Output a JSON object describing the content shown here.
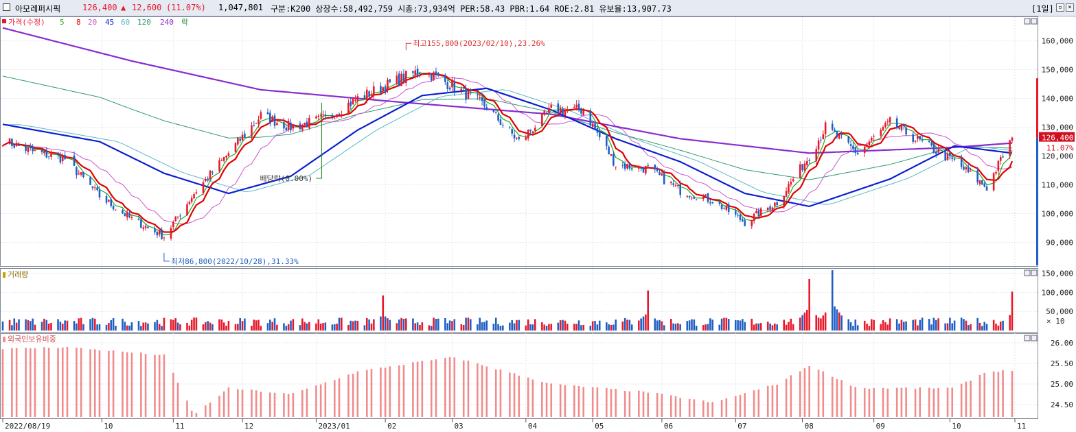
{
  "header": {
    "name": "아모레퍼시픽",
    "price": "126,400",
    "change_arrow": "▲",
    "change": "12,600",
    "change_pct": "(11.07%)",
    "volume": "1,047,801",
    "info": "구분:K200 상장수:58,492,759 시총:73,934억 PER:58.43 PBR:1.64 ROE:2.81 유보율:13,907.73",
    "period": "[1일]",
    "min_icon": "minimize-icon",
    "close_icon": "close-icon"
  },
  "colors": {
    "up": "#e8182b",
    "down": "#1f5fc4",
    "ma5": "#22aa22",
    "ma8": "#e00000",
    "ma20": "#cc55cc",
    "ma45": "#0a1fd0",
    "ma60": "#5bb8c8",
    "ma120": "#2f9a6e",
    "ma240": "#8a2bd0",
    "foreign": "#f08c8c"
  },
  "chart_data": [
    {
      "type": "candlestick",
      "title": "",
      "legend": [
        "가격(수정)",
        "5",
        "8",
        "20",
        "45",
        "60",
        "120",
        "240",
        "락"
      ],
      "x_ticks": [
        "2022/08/19",
        "10",
        "11",
        "12",
        "2023/01",
        "02",
        "03",
        "04",
        "05",
        "06",
        "07",
        "08",
        "09",
        "10",
        "11"
      ],
      "y_ticks": [
        "160,000",
        "150,000",
        "140,000",
        "130,000",
        "120,000",
        "110,000",
        "100,000",
        "90,000"
      ],
      "ylim": [
        82000,
        168000
      ],
      "last_price_label": "126,400",
      "last_change_label": "11.07%",
      "annotations": {
        "high": "최고155,800(2023/02/10),23.26%",
        "low": "최저86,800(2022/10/28),31.33%",
        "dividend": "배당락(0.00%)"
      },
      "series": [
        {
          "name": "가격(수정)",
          "values": [
            {
              "x": "2022-08-19",
              "y": 125500
            },
            {
              "x": "2022-09-01",
              "y": 121500
            },
            {
              "x": "2022-09-15",
              "y": 119000
            },
            {
              "x": "2022-09-30",
              "y": 106000
            },
            {
              "x": "2022-10-14",
              "y": 98000
            },
            {
              "x": "2022-10-28",
              "y": 92000
            },
            {
              "x": "2022-11-10",
              "y": 107000
            },
            {
              "x": "2022-11-25",
              "y": 121000
            },
            {
              "x": "2022-12-09",
              "y": 134000
            },
            {
              "x": "2022-12-22",
              "y": 130000
            },
            {
              "x": "2023-01-06",
              "y": 133000
            },
            {
              "x": "2023-01-20",
              "y": 140000
            },
            {
              "x": "2023-02-03",
              "y": 145000
            },
            {
              "x": "2023-02-17",
              "y": 150000
            },
            {
              "x": "2023-03-03",
              "y": 144000
            },
            {
              "x": "2023-03-17",
              "y": 137000
            },
            {
              "x": "2023-03-31",
              "y": 125000
            },
            {
              "x": "2023-04-14",
              "y": 136000
            },
            {
              "x": "2023-04-28",
              "y": 136000
            },
            {
              "x": "2023-05-12",
              "y": 117000
            },
            {
              "x": "2023-05-26",
              "y": 115500
            },
            {
              "x": "2023-06-09",
              "y": 108000
            },
            {
              "x": "2023-06-23",
              "y": 104500
            },
            {
              "x": "2023-07-07",
              "y": 97000
            },
            {
              "x": "2023-07-21",
              "y": 104000
            },
            {
              "x": "2023-08-04",
              "y": 120000
            },
            {
              "x": "2023-08-11",
              "y": 130000
            },
            {
              "x": "2023-08-25",
              "y": 121000
            },
            {
              "x": "2023-09-08",
              "y": 131500
            },
            {
              "x": "2023-09-22",
              "y": 124500
            },
            {
              "x": "2023-10-06",
              "y": 118000
            },
            {
              "x": "2023-10-20",
              "y": 109000
            },
            {
              "x": "2023-10-31",
              "y": 126400
            }
          ]
        },
        {
          "name": "45",
          "values": [
            {
              "x": "2022-08-19",
              "y": 131000
            },
            {
              "x": "2022-09-30",
              "y": 125000
            },
            {
              "x": "2022-10-28",
              "y": 114000
            },
            {
              "x": "2022-11-25",
              "y": 107000
            },
            {
              "x": "2022-12-22",
              "y": 113000
            },
            {
              "x": "2023-01-20",
              "y": 129000
            },
            {
              "x": "2023-02-17",
              "y": 141000
            },
            {
              "x": "2023-03-17",
              "y": 143500
            },
            {
              "x": "2023-04-14",
              "y": 136000
            },
            {
              "x": "2023-05-12",
              "y": 126000
            },
            {
              "x": "2023-06-09",
              "y": 118000
            },
            {
              "x": "2023-07-07",
              "y": 107000
            },
            {
              "x": "2023-08-04",
              "y": 102500
            },
            {
              "x": "2023-09-08",
              "y": 112000
            },
            {
              "x": "2023-10-06",
              "y": 123500
            },
            {
              "x": "2023-10-31",
              "y": 121000
            }
          ]
        },
        {
          "name": "240",
          "values": [
            {
              "x": "2022-08-19",
              "y": 164500
            },
            {
              "x": "2022-10-14",
              "y": 153000
            },
            {
              "x": "2022-12-09",
              "y": 143000
            },
            {
              "x": "2023-02-03",
              "y": 139000
            },
            {
              "x": "2023-04-14",
              "y": 134500
            },
            {
              "x": "2023-06-09",
              "y": 126000
            },
            {
              "x": "2023-08-04",
              "y": 121000
            },
            {
              "x": "2023-10-06",
              "y": 123000
            },
            {
              "x": "2023-10-31",
              "y": 124500
            }
          ]
        }
      ]
    },
    {
      "type": "bar",
      "title": "거래량",
      "y_ticks": [
        "150,000",
        "100,000",
        "50,000"
      ],
      "unit_label": "× 10",
      "ylim": [
        0,
        160000
      ],
      "peaks": [
        {
          "x": "2023-01-31",
          "y": 92000
        },
        {
          "x": "2023-05-26",
          "y": 105000
        },
        {
          "x": "2023-08-04",
          "y": 135000
        },
        {
          "x": "2023-08-14",
          "y": 158000
        },
        {
          "x": "2023-10-31",
          "y": 102000
        }
      ]
    },
    {
      "type": "bar",
      "title": "외국인보유비중",
      "y_ticks": [
        "26.00",
        "25.50",
        "25.00",
        "24.50"
      ],
      "ylim": [
        24.2,
        26.2
      ],
      "values": [
        {
          "x": "2022-08-19",
          "y": 25.85
        },
        {
          "x": "2022-09-15",
          "y": 25.9
        },
        {
          "x": "2022-10-28",
          "y": 25.7
        },
        {
          "x": "2022-11-10",
          "y": 24.25
        },
        {
          "x": "2022-11-25",
          "y": 24.9
        },
        {
          "x": "2022-12-22",
          "y": 24.75
        },
        {
          "x": "2023-01-20",
          "y": 25.3
        },
        {
          "x": "2023-02-17",
          "y": 25.55
        },
        {
          "x": "2023-03-03",
          "y": 25.65
        },
        {
          "x": "2023-04-14",
          "y": 25.0
        },
        {
          "x": "2023-05-26",
          "y": 24.8
        },
        {
          "x": "2023-06-23",
          "y": 24.55
        },
        {
          "x": "2023-07-21",
          "y": 25.0
        },
        {
          "x": "2023-08-04",
          "y": 25.45
        },
        {
          "x": "2023-08-25",
          "y": 24.9
        },
        {
          "x": "2023-10-06",
          "y": 24.9
        },
        {
          "x": "2023-10-20",
          "y": 25.3
        },
        {
          "x": "2023-10-31",
          "y": 25.33
        }
      ]
    }
  ]
}
